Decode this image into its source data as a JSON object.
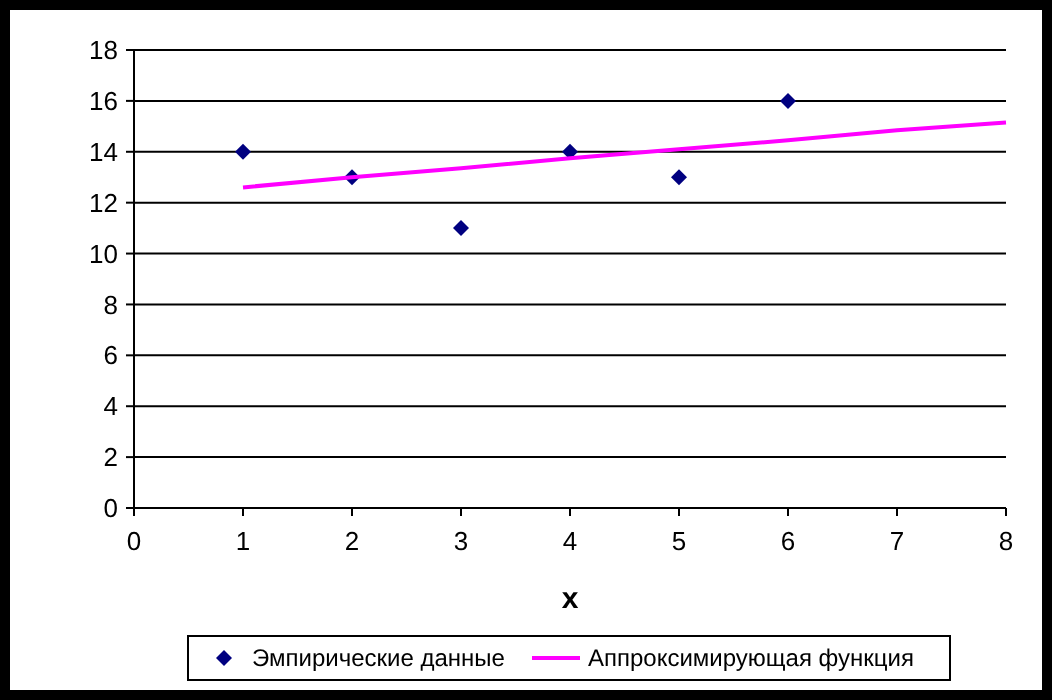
{
  "chart_data": {
    "type": "scatter",
    "xlabel": "x",
    "xlim": [
      0,
      8
    ],
    "xticks": [
      0,
      1,
      2,
      3,
      4,
      5,
      6,
      7,
      8
    ],
    "ylim": [
      0,
      18
    ],
    "yticks": [
      0,
      2,
      4,
      6,
      8,
      10,
      12,
      14,
      16,
      18
    ],
    "grid": "y",
    "legend": "bottom",
    "series": [
      {
        "name": "Эмпирические данные",
        "marker": "diamond",
        "color": "#000080",
        "x": [
          1,
          2,
          3,
          4,
          5,
          6
        ],
        "values": [
          14,
          13,
          11,
          14,
          13,
          16
        ]
      },
      {
        "name": "Аппроксимирующая функция",
        "type": "line",
        "marker": "none",
        "line_style": "solid",
        "color": "#ff00ff",
        "x": [
          1,
          2,
          3,
          4,
          5,
          6,
          7,
          8
        ],
        "values": [
          12.6,
          13.0,
          13.35,
          13.75,
          14.1,
          14.45,
          14.85,
          15.15
        ]
      }
    ]
  }
}
